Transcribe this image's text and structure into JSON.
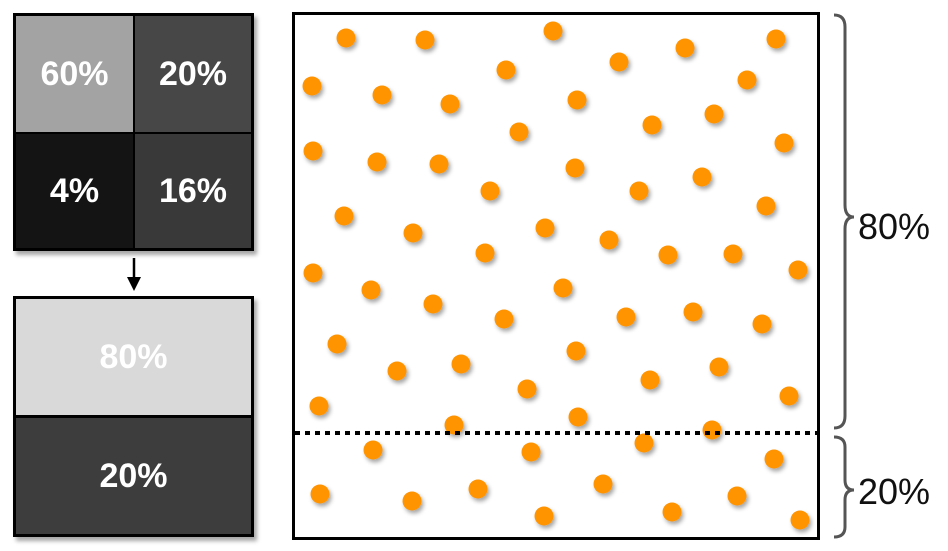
{
  "grid": {
    "top_left": {
      "label": "60%",
      "color": "#a3a3a3"
    },
    "top_right": {
      "label": "20%",
      "color": "#474747"
    },
    "bottom_left": {
      "label": "4%",
      "color": "#141414"
    },
    "bottom_right": {
      "label": "16%",
      "color": "#393939"
    }
  },
  "collapsed": {
    "top": {
      "label": "80%",
      "color": "#d9d9d9"
    },
    "bottom": {
      "label": "20%",
      "color": "#3d3d3d"
    }
  },
  "side_labels": {
    "upper": "80%",
    "lower": "20%"
  },
  "dots": {
    "color": "#ff9300",
    "upper_count": 61,
    "lower_count": 15
  }
}
